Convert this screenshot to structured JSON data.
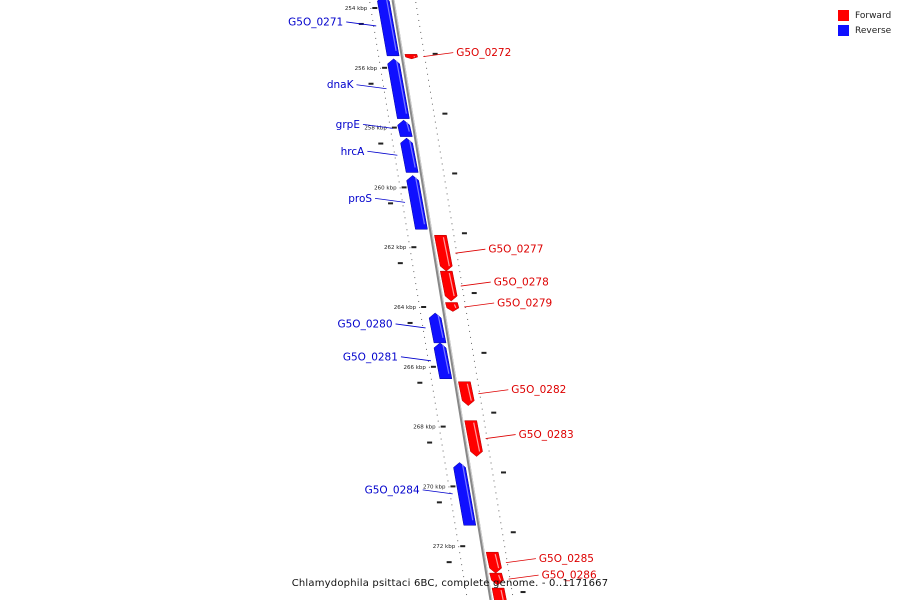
{
  "legend": {
    "forward_label": "Forward",
    "reverse_label": "Reverse",
    "forward_color": "#ff0000",
    "reverse_color": "#1010ff"
  },
  "caption": "Chlamydophila psittaci 6BC, complete genome. - 0..1171667",
  "ticks": [
    {
      "kbp": 254,
      "label": "254 kbp"
    },
    {
      "kbp": 256,
      "label": "256 kbp"
    },
    {
      "kbp": 258,
      "label": "258 kbp"
    },
    {
      "kbp": 260,
      "label": "260 kbp"
    },
    {
      "kbp": 262,
      "label": "262 kbp"
    },
    {
      "kbp": 264,
      "label": "264 kbp"
    },
    {
      "kbp": 266,
      "label": "266 kbp"
    },
    {
      "kbp": 268,
      "label": "268 kbp"
    },
    {
      "kbp": 270,
      "label": "270 kbp"
    },
    {
      "kbp": 272,
      "label": "272 kbp"
    }
  ],
  "genes": [
    {
      "name": "G5O_0271",
      "strand": "reverse",
      "start": 253.6,
      "end": 255.6
    },
    {
      "name": "G5O_0272",
      "strand": "forward",
      "start": 255.55,
      "end": 255.7
    },
    {
      "name": "dnaK",
      "strand": "reverse",
      "start": 255.7,
      "end": 257.7
    },
    {
      "name": "grpE",
      "strand": "reverse",
      "start": 257.75,
      "end": 258.3
    },
    {
      "name": "hrcA",
      "strand": "reverse",
      "start": 258.35,
      "end": 259.5
    },
    {
      "name": "proS",
      "strand": "reverse",
      "start": 259.6,
      "end": 261.4
    },
    {
      "name": "G5O_0277",
      "strand": "forward",
      "start": 261.6,
      "end": 262.8
    },
    {
      "name": "G5O_0278",
      "strand": "forward",
      "start": 262.8,
      "end": 263.8
    },
    {
      "name": "G5O_0279",
      "strand": "forward",
      "start": 263.85,
      "end": 264.15
    },
    {
      "name": "G5O_0280",
      "strand": "reverse",
      "start": 264.2,
      "end": 265.2
    },
    {
      "name": "G5O_0281",
      "strand": "reverse",
      "start": 265.2,
      "end": 266.4
    },
    {
      "name": "G5O_0282",
      "strand": "forward",
      "start": 266.5,
      "end": 267.3
    },
    {
      "name": "G5O_0283",
      "strand": "forward",
      "start": 267.8,
      "end": 269.0
    },
    {
      "name": "G5O_0284",
      "strand": "reverse",
      "start": 269.2,
      "end": 271.3
    },
    {
      "name": "G5O_0285",
      "strand": "forward",
      "start": 272.2,
      "end": 272.9
    },
    {
      "name": "G5O_0286",
      "strand": "forward",
      "start": 272.9,
      "end": 273.3
    },
    {
      "name": "",
      "strand": "forward",
      "start": 273.4,
      "end": 274.4
    }
  ]
}
